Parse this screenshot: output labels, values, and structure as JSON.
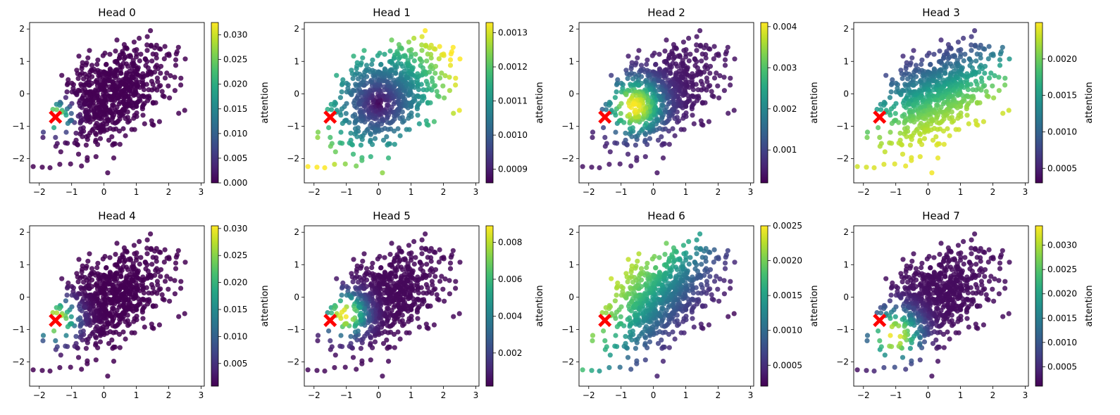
{
  "chart_data": [
    {
      "type": "scatter",
      "title": "Head 0",
      "colorbar_label": "attention",
      "clim": [
        0.0,
        0.0325
      ],
      "colorbar_ticks": [
        "0.000",
        "0.005",
        "0.010",
        "0.015",
        "0.020",
        "0.025",
        "0.030"
      ],
      "colorbar_tick_values": [
        0.0,
        0.005,
        0.01,
        0.015,
        0.02,
        0.025,
        0.03
      ],
      "pattern": "query_local",
      "params": {
        "sigma": 0.32
      },
      "xlim": [
        -2.3,
        3.1
      ],
      "ylim": [
        -2.75,
        2.2
      ],
      "xticks": [
        -2,
        -1,
        0,
        1,
        2,
        3
      ],
      "yticks": [
        -2,
        -1,
        0,
        1,
        2
      ],
      "query_point": {
        "x": -1.5,
        "y": -0.72,
        "marker": "X",
        "color": "#ff0000"
      }
    },
    {
      "type": "scatter",
      "title": "Head 1",
      "colorbar_label": "attention",
      "clim": [
        0.00086,
        0.00133
      ],
      "colorbar_ticks": [
        "0.0009",
        "0.0010",
        "0.0011",
        "0.0012",
        "0.0013"
      ],
      "colorbar_tick_values": [
        0.0009,
        0.001,
        0.0011,
        0.0012,
        0.0013
      ],
      "pattern": "radial",
      "params": {
        "cx": 0.0,
        "cy": -0.3
      },
      "xlim": [
        -2.3,
        3.1
      ],
      "ylim": [
        -2.75,
        2.2
      ],
      "xticks": [
        -2,
        -1,
        0,
        1,
        2,
        3
      ],
      "yticks": [
        -2,
        -1,
        0,
        1,
        2
      ],
      "query_point": {
        "x": -1.5,
        "y": -0.72,
        "marker": "X",
        "color": "#ff0000"
      }
    },
    {
      "type": "scatter",
      "title": "Head 2",
      "colorbar_label": "attention",
      "clim": [
        0.0002,
        0.0041
      ],
      "colorbar_ticks": [
        "0.001",
        "0.002",
        "0.003",
        "0.004"
      ],
      "colorbar_tick_values": [
        0.001,
        0.002,
        0.003,
        0.004
      ],
      "pattern": "blob",
      "params": {
        "cx": -0.6,
        "cy": -0.4,
        "sigma": 0.6,
        "base": 0.05
      },
      "xlim": [
        -2.3,
        3.1
      ],
      "ylim": [
        -2.75,
        2.2
      ],
      "xticks": [
        -2,
        -1,
        0,
        1,
        2,
        3
      ],
      "yticks": [
        -2,
        -1,
        0,
        1,
        2
      ],
      "query_point": {
        "x": -1.5,
        "y": -0.72,
        "marker": "X",
        "color": "#ff0000"
      }
    },
    {
      "type": "scatter",
      "title": "Head 3",
      "colorbar_label": "attention",
      "clim": [
        0.0003,
        0.0025
      ],
      "colorbar_ticks": [
        "0.0005",
        "0.0010",
        "0.0015",
        "0.0020"
      ],
      "colorbar_tick_values": [
        0.0005,
        0.001,
        0.0015,
        0.002
      ],
      "pattern": "directional",
      "params": {
        "dx": 0.35,
        "dy": -0.94,
        "offset": 0.2
      },
      "xlim": [
        -2.3,
        3.1
      ],
      "ylim": [
        -2.75,
        2.2
      ],
      "xticks": [
        -2,
        -1,
        0,
        1,
        2,
        3
      ],
      "yticks": [
        -2,
        -1,
        0,
        1,
        2
      ],
      "query_point": {
        "x": -1.5,
        "y": -0.72,
        "marker": "X",
        "color": "#ff0000"
      }
    },
    {
      "type": "scatter",
      "title": "Head 4",
      "colorbar_label": "attention",
      "clim": [
        0.0008,
        0.0305
      ],
      "colorbar_ticks": [
        "0.005",
        "0.010",
        "0.015",
        "0.020",
        "0.025",
        "0.030"
      ],
      "colorbar_tick_values": [
        0.005,
        0.01,
        0.015,
        0.02,
        0.025,
        0.03
      ],
      "pattern": "query_local",
      "params": {
        "sigma": 0.45
      },
      "xlim": [
        -2.3,
        3.1
      ],
      "ylim": [
        -2.75,
        2.2
      ],
      "xticks": [
        -2,
        -1,
        0,
        1,
        2,
        3
      ],
      "yticks": [
        -2,
        -1,
        0,
        1,
        2
      ],
      "query_point": {
        "x": -1.5,
        "y": -0.72,
        "marker": "X",
        "color": "#ff0000"
      }
    },
    {
      "type": "scatter",
      "title": "Head 5",
      "colorbar_label": "attention",
      "clim": [
        0.0002,
        0.0089
      ],
      "colorbar_ticks": [
        "0.002",
        "0.004",
        "0.006",
        "0.008"
      ],
      "colorbar_tick_values": [
        0.002,
        0.004,
        0.006,
        0.008
      ],
      "pattern": "blob",
      "params": {
        "cx": -1.05,
        "cy": -0.55,
        "sigma": 0.45,
        "base": 0.02
      },
      "xlim": [
        -2.3,
        3.1
      ],
      "ylim": [
        -2.75,
        2.2
      ],
      "xticks": [
        -2,
        -1,
        0,
        1,
        2,
        3
      ],
      "yticks": [
        -2,
        -1,
        0,
        1,
        2
      ],
      "query_point": {
        "x": -1.5,
        "y": -0.72,
        "marker": "X",
        "color": "#ff0000"
      }
    },
    {
      "type": "scatter",
      "title": "Head 6",
      "colorbar_label": "attention",
      "clim": [
        0.0002,
        0.0025
      ],
      "colorbar_ticks": [
        "0.0005",
        "0.0010",
        "0.0015",
        "0.0020",
        "0.0025"
      ],
      "colorbar_tick_values": [
        0.0005,
        0.001,
        0.0015,
        0.002,
        0.0025
      ],
      "pattern": "directional",
      "params": {
        "dx": -0.8,
        "dy": 0.6,
        "offset": 0.1
      },
      "xlim": [
        -2.3,
        3.1
      ],
      "ylim": [
        -2.75,
        2.2
      ],
      "xticks": [
        -2,
        -1,
        0,
        1,
        2,
        3
      ],
      "yticks": [
        -2,
        -1,
        0,
        1,
        2
      ],
      "query_point": {
        "x": -1.5,
        "y": -0.72,
        "marker": "X",
        "color": "#ff0000"
      }
    },
    {
      "type": "scatter",
      "title": "Head 7",
      "colorbar_label": "attention",
      "clim": [
        0.0001,
        0.0034
      ],
      "colorbar_ticks": [
        "0.0005",
        "0.0010",
        "0.0015",
        "0.0020",
        "0.0025",
        "0.0030"
      ],
      "colorbar_tick_values": [
        0.0005,
        0.001,
        0.0015,
        0.002,
        0.0025,
        0.003
      ],
      "pattern": "blob",
      "params": {
        "cx": -1.05,
        "cy": -1.2,
        "sigma": 0.55,
        "base": 0.03
      },
      "xlim": [
        -2.3,
        3.1
      ],
      "ylim": [
        -2.75,
        2.2
      ],
      "xticks": [
        -2,
        -1,
        0,
        1,
        2,
        3
      ],
      "yticks": [
        -2,
        -1,
        0,
        1,
        2
      ],
      "query_point": {
        "x": -1.5,
        "y": -0.72,
        "marker": "X",
        "color": "#ff0000"
      }
    }
  ],
  "points": {
    "count": 700,
    "distribution": "gaussian",
    "mean": [
      0.3,
      0.0
    ],
    "std": [
      0.85,
      0.78
    ],
    "correlation": 0.45,
    "seed": 7
  },
  "colormap": [
    "#440154",
    "#482878",
    "#3e4989",
    "#31688e",
    "#26828e",
    "#1f9e89",
    "#35b779",
    "#6ece58",
    "#b5de2b",
    "#fde725"
  ]
}
